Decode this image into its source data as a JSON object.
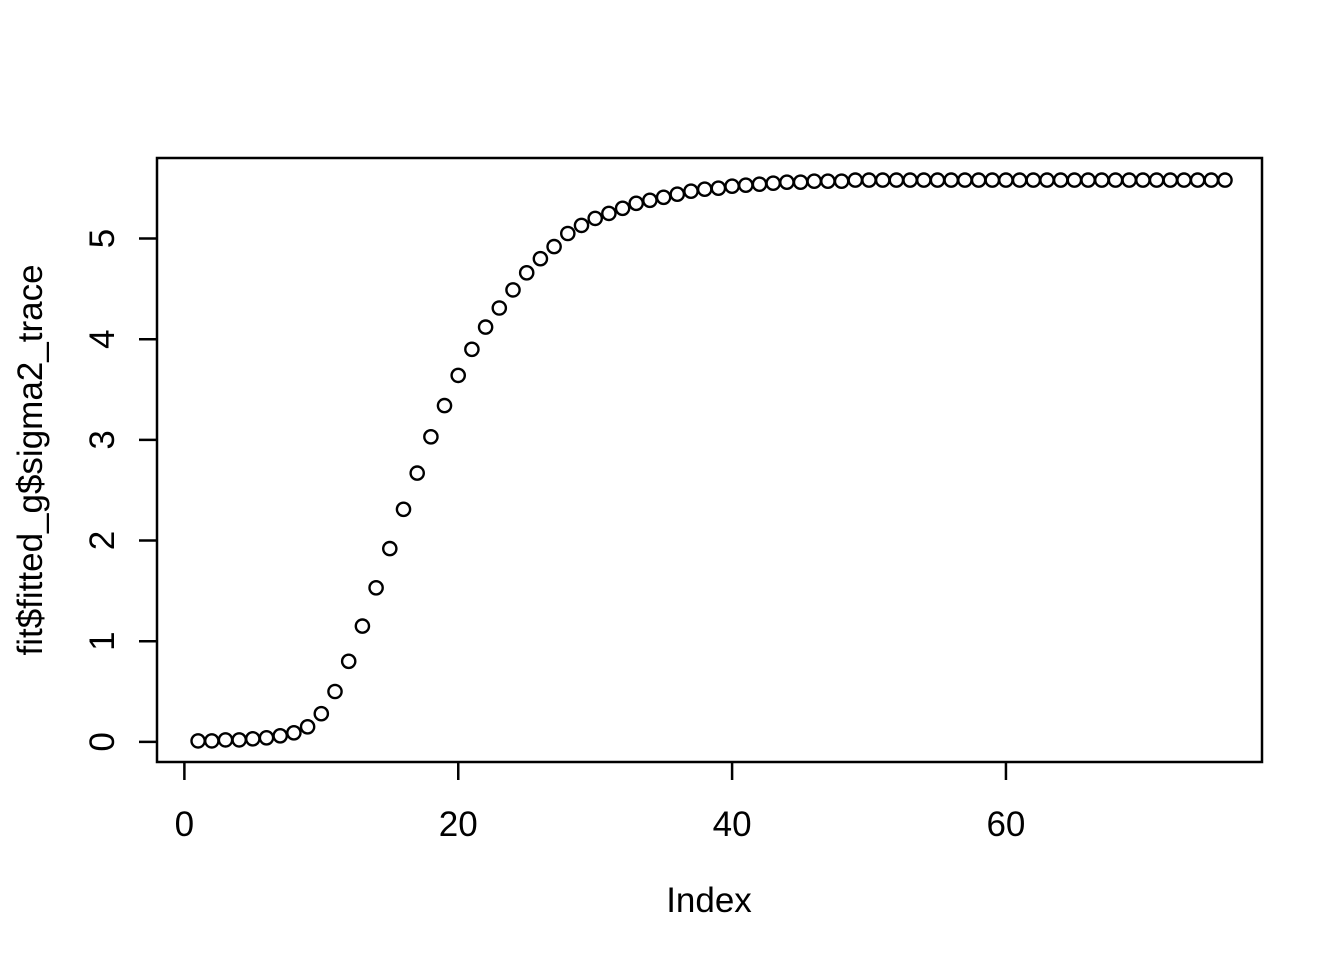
{
  "figure": {
    "background_color": "#ffffff",
    "foreground_color": "#000000"
  },
  "chart_data": {
    "type": "scatter",
    "title": "",
    "xlabel": "Index",
    "ylabel": "fit$fitted_g$sigma2_trace",
    "point_marker": "open-circle",
    "marker_color": "#000000",
    "grid": false,
    "legend": "none",
    "xlim": [
      -2.0,
      78.7
    ],
    "ylim": [
      -0.2,
      5.8
    ],
    "x_ticks": [
      0,
      20,
      40,
      60
    ],
    "y_ticks": [
      0,
      1,
      2,
      3,
      4,
      5
    ],
    "series": [
      {
        "name": "fit$fitted_g$sigma2_trace",
        "x": [
          1,
          2,
          3,
          4,
          5,
          6,
          7,
          8,
          9,
          10,
          11,
          12,
          13,
          14,
          15,
          16,
          17,
          18,
          19,
          20,
          21,
          22,
          23,
          24,
          25,
          26,
          27,
          28,
          29,
          30,
          31,
          32,
          33,
          34,
          35,
          36,
          37,
          38,
          39,
          40,
          41,
          42,
          43,
          44,
          45,
          46,
          47,
          48,
          49,
          50,
          51,
          52,
          53,
          54,
          55,
          56,
          57,
          58,
          59,
          60,
          61,
          62,
          63,
          64,
          65,
          66,
          67,
          68,
          69,
          70,
          71,
          72,
          73,
          74,
          75,
          76
        ],
        "y": [
          0.01,
          0.01,
          0.02,
          0.02,
          0.03,
          0.04,
          0.06,
          0.09,
          0.15,
          0.28,
          0.5,
          0.8,
          1.15,
          1.53,
          1.92,
          2.31,
          2.67,
          3.03,
          3.34,
          3.64,
          3.9,
          4.12,
          4.31,
          4.49,
          4.66,
          4.8,
          4.92,
          5.05,
          5.13,
          5.2,
          5.25,
          5.3,
          5.35,
          5.38,
          5.41,
          5.44,
          5.47,
          5.49,
          5.5,
          5.52,
          5.53,
          5.54,
          5.55,
          5.56,
          5.56,
          5.57,
          5.57,
          5.57,
          5.58,
          5.58,
          5.58,
          5.58,
          5.58,
          5.58,
          5.58,
          5.58,
          5.58,
          5.58,
          5.58,
          5.58,
          5.58,
          5.58,
          5.58,
          5.58,
          5.58,
          5.58,
          5.58,
          5.58,
          5.58,
          5.58,
          5.58,
          5.58,
          5.58,
          5.58,
          5.58,
          5.58
        ]
      }
    ]
  }
}
